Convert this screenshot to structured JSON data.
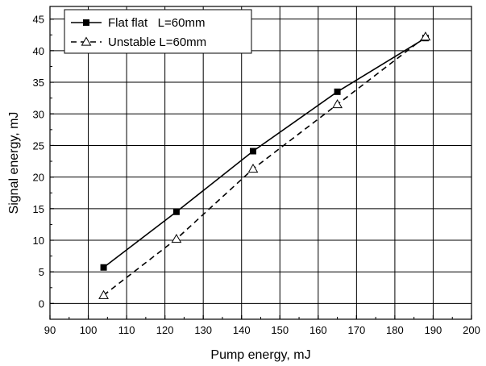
{
  "chart_data": {
    "type": "line",
    "title": "",
    "xlabel": "Pump energy, mJ",
    "ylabel": "Signal energy, mJ",
    "xlim": [
      90,
      200
    ],
    "ylim": [
      -2.5,
      47
    ],
    "xticks": [
      90,
      100,
      110,
      120,
      130,
      140,
      150,
      160,
      170,
      180,
      190,
      200
    ],
    "yticks": [
      0,
      5,
      10,
      15,
      20,
      25,
      30,
      35,
      40,
      45
    ],
    "grid": true,
    "legend_position": "top-left",
    "series": [
      {
        "name": "Flat flat   L=60mm",
        "line_style": "solid",
        "marker": "filled-square",
        "color": "#000000",
        "points": [
          [
            104,
            5.7
          ],
          [
            123,
            14.5
          ],
          [
            143,
            24.1
          ],
          [
            165,
            33.5
          ],
          [
            188,
            42
          ]
        ]
      },
      {
        "name": "Unstable L=60mm",
        "line_style": "dashed",
        "marker": "open-triangle",
        "color": "#000000",
        "points": [
          [
            104,
            1.3
          ],
          [
            123,
            10.2
          ],
          [
            143,
            21.3
          ],
          [
            165,
            31.5
          ],
          [
            188,
            42.2
          ]
        ]
      }
    ]
  }
}
